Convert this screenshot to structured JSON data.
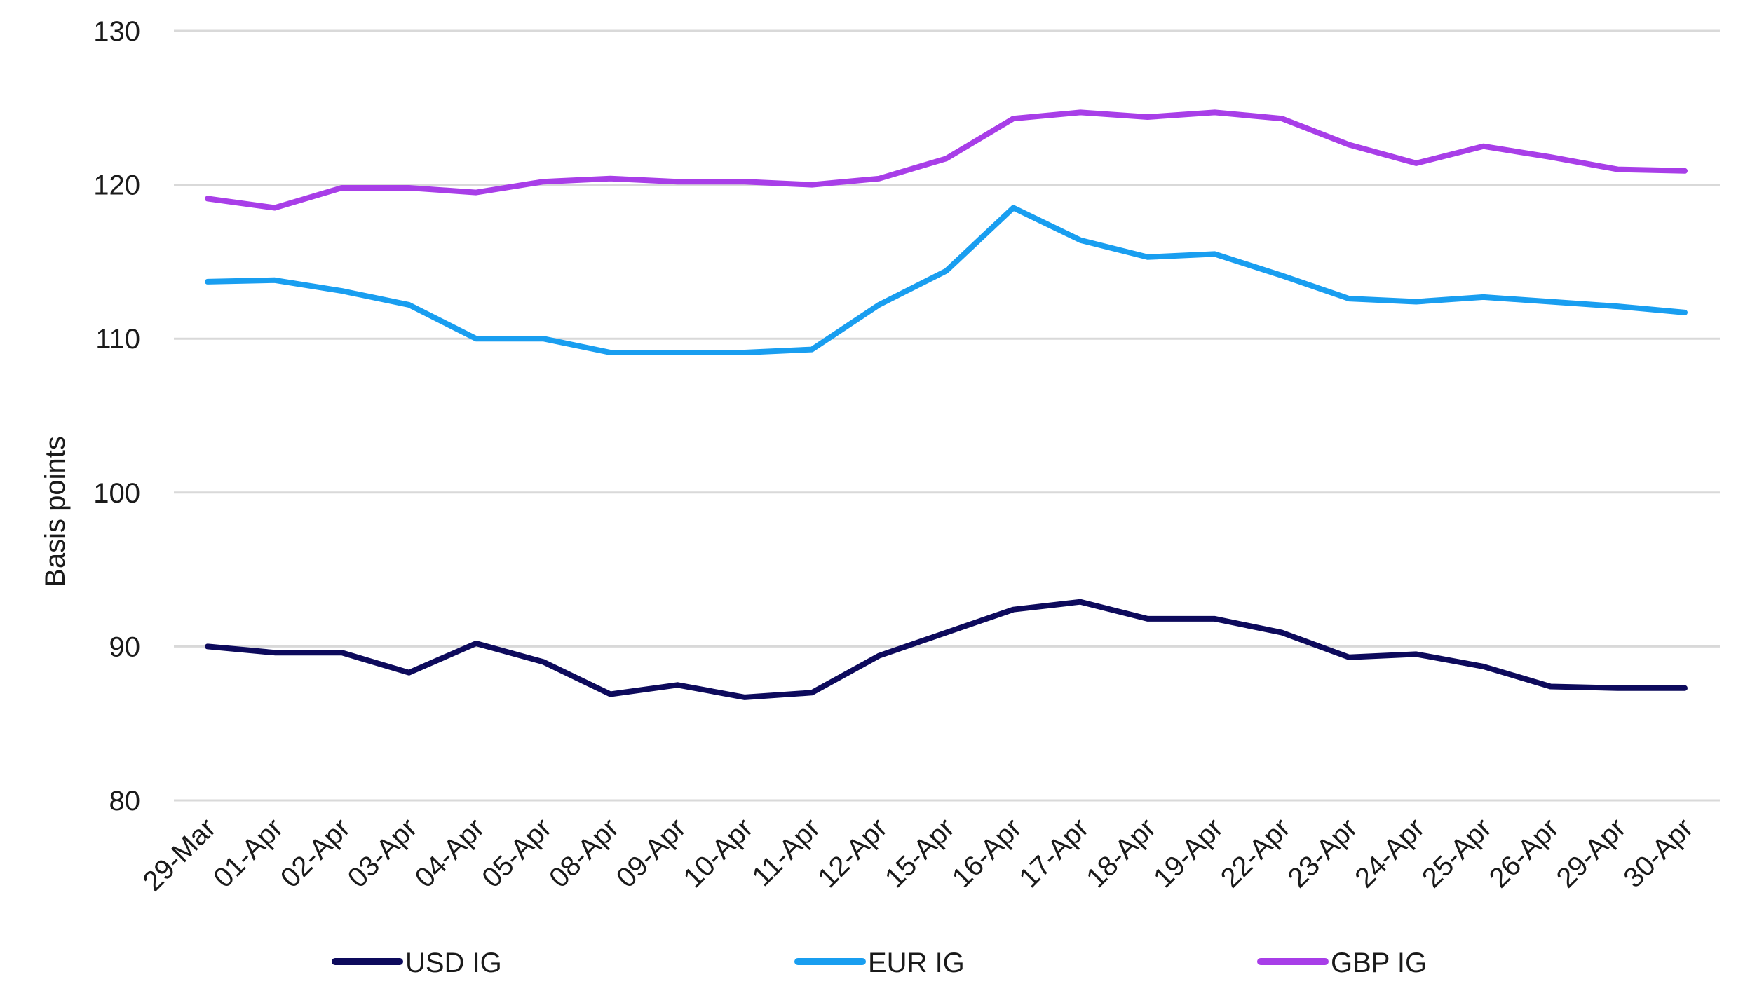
{
  "chart_data": {
    "type": "line",
    "title": "",
    "xlabel": "",
    "ylabel": "Basis points",
    "ylim": [
      80,
      130
    ],
    "yticks": [
      80,
      90,
      100,
      110,
      120,
      130
    ],
    "grid": true,
    "legend_position": "bottom",
    "categories": [
      "29-Mar",
      "01-Apr",
      "02-Apr",
      "03-Apr",
      "04-Apr",
      "05-Apr",
      "08-Apr",
      "09-Apr",
      "10-Apr",
      "11-Apr",
      "12-Apr",
      "15-Apr",
      "16-Apr",
      "17-Apr",
      "18-Apr",
      "19-Apr",
      "22-Apr",
      "23-Apr",
      "24-Apr",
      "25-Apr",
      "26-Apr",
      "29-Apr",
      "30-Apr"
    ],
    "series": [
      {
        "name": "USD IG",
        "color": "#0d0a5c",
        "values": [
          90.0,
          89.6,
          89.6,
          88.3,
          90.2,
          89.0,
          86.9,
          87.5,
          86.7,
          87.0,
          89.4,
          90.9,
          92.4,
          92.9,
          91.8,
          91.8,
          90.9,
          89.3,
          89.5,
          88.7,
          87.4,
          87.3,
          87.3
        ]
      },
      {
        "name": "EUR IG",
        "color": "#199ef0",
        "values": [
          113.7,
          113.8,
          113.1,
          112.2,
          110.0,
          110.0,
          109.1,
          109.1,
          109.1,
          109.3,
          112.2,
          114.4,
          118.5,
          116.4,
          115.3,
          115.5,
          114.1,
          112.6,
          112.4,
          112.7,
          112.4,
          112.1,
          111.7
        ]
      },
      {
        "name": "GBP IG",
        "color": "#a83ee8",
        "values": [
          119.1,
          118.5,
          119.8,
          119.8,
          119.5,
          120.2,
          120.4,
          120.2,
          120.2,
          120.0,
          120.4,
          121.7,
          124.3,
          124.7,
          124.4,
          124.7,
          124.3,
          122.6,
          121.4,
          122.5,
          121.8,
          121.0,
          120.9
        ]
      }
    ]
  }
}
